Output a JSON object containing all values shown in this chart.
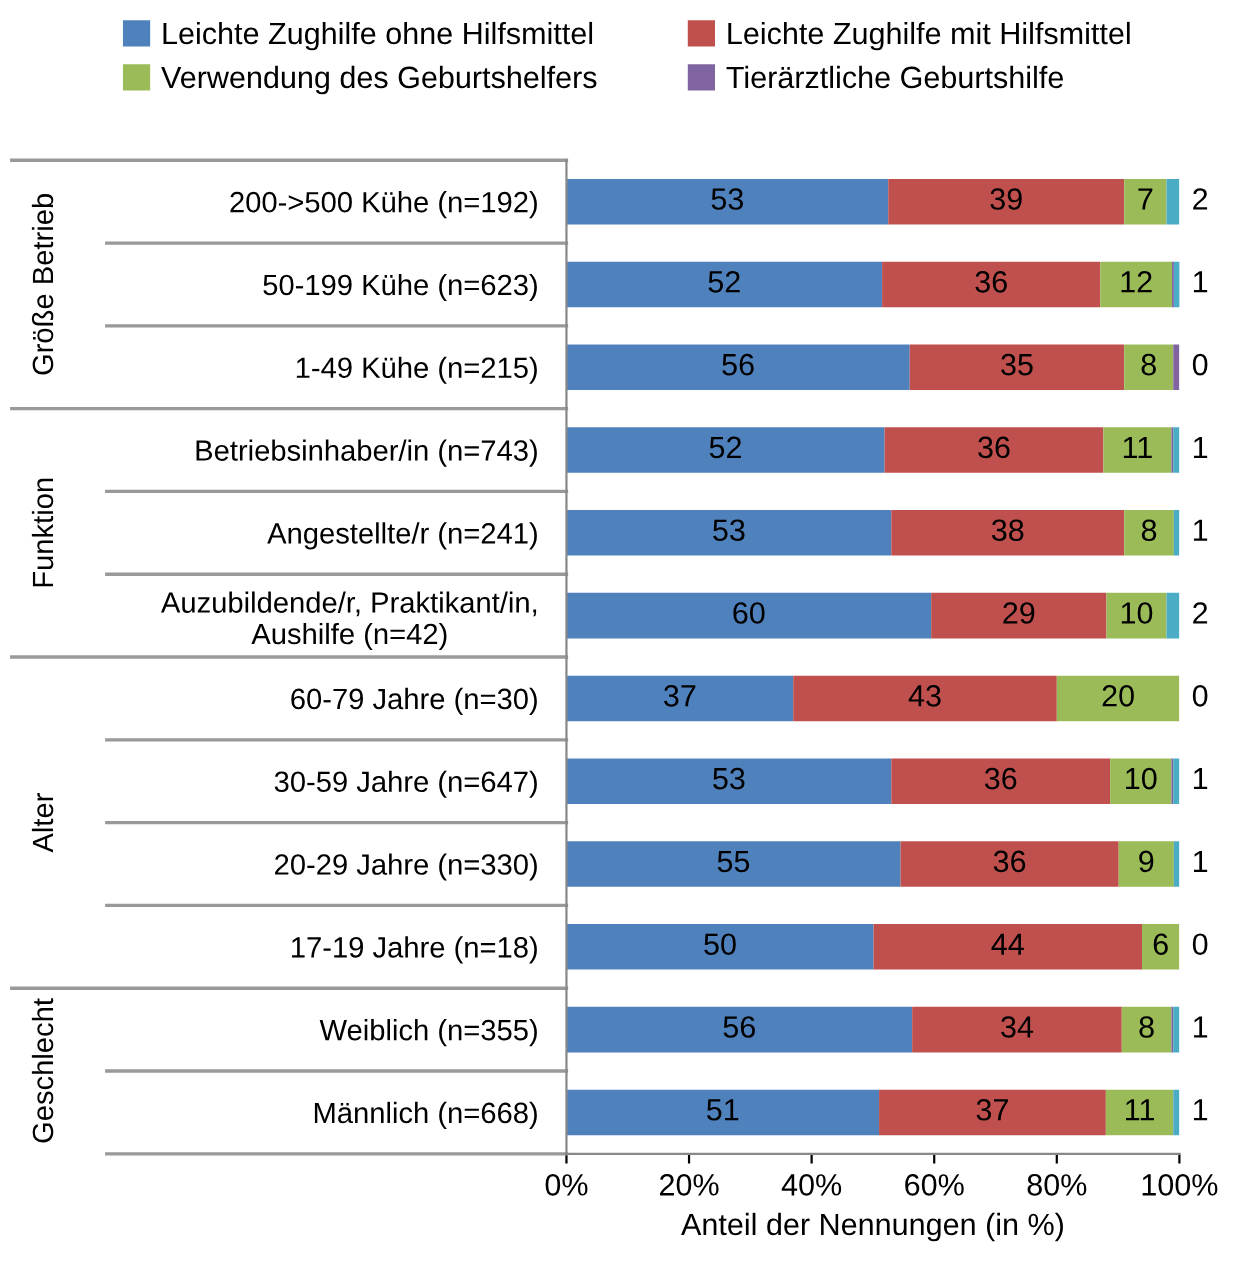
{
  "chart_data": {
    "type": "bar",
    "orientation": "horizontal",
    "stacked": true,
    "categories": [
      "200->500 Kühe (n=192)",
      "50-199 Kühe (n=623)",
      "1-49 Kühe (n=215)",
      "Betriebsinhaber/in (n=743)",
      "Angestellte/r (n=241)",
      "Auzubildende/r, Praktikant/in,\nAushilfe (n=42)",
      "60-79 Jahre (n=30)",
      "30-59 Jahre (n=647)",
      "20-29 Jahre (n=330)",
      "17-19 Jahre (n=18)",
      "Weiblich (n=355)",
      "Männlich (n=668)"
    ],
    "series": [
      {
        "name": "Leichte Zughilfe ohne Hilfsmittel",
        "color": "#4f81bd",
        "values": [
          52.5,
          51.5,
          56.0,
          51.9,
          53.0,
          59.5,
          37.0,
          53.0,
          54.5,
          50.1,
          56.4,
          51.0
        ],
        "value_labels": [
          "53",
          "52",
          "56",
          "52",
          "53",
          "60",
          "37",
          "53",
          "55",
          "50",
          "56",
          "51"
        ]
      },
      {
        "name": "Leichte Zughilfe mit Hilfsmittel",
        "color": "#c0504d",
        "values": [
          38.5,
          35.6,
          35.0,
          35.7,
          38.0,
          28.6,
          43.0,
          35.7,
          35.6,
          43.8,
          34.2,
          37.0
        ],
        "value_labels": [
          "39",
          "36",
          "35",
          "36",
          "38",
          "29",
          "43",
          "36",
          "36",
          "44",
          "34",
          "37"
        ]
      },
      {
        "name": "Verwendung des Geburtshelfers",
        "color": "#9bbb59",
        "values": [
          6.9,
          11.7,
          8.0,
          11.1,
          8.1,
          9.8,
          20.0,
          10.0,
          9.0,
          6.1,
          8.1,
          11.0
        ],
        "value_labels": [
          "7",
          "12",
          "8",
          "11",
          "8",
          "10",
          "20",
          "10",
          "9",
          "6",
          "8",
          "11"
        ]
      },
      {
        "name": "Tierärztliche Geburtshilfe",
        "color": "#8064a2",
        "values": [
          0,
          0.3,
          1.0,
          0.3,
          0,
          0,
          0,
          0.3,
          0,
          0,
          0.3,
          0
        ]
      },
      {
        "color": "#4bacc6",
        "values": [
          2.1,
          1.0,
          0,
          1.0,
          0.9,
          2.1,
          0,
          1.0,
          0.9,
          0,
          1.0,
          1.0
        ],
        "value_labels": [
          "2",
          "1",
          "0",
          "1",
          "1",
          "2",
          "0",
          "1",
          "1",
          "0",
          "1",
          "1"
        ]
      }
    ],
    "xlim": [
      0,
      100
    ],
    "xticks": [
      {
        "value": 0,
        "label": "0%"
      },
      {
        "value": 20,
        "label": "20%"
      },
      {
        "value": 40,
        "label": "40%"
      },
      {
        "value": 60,
        "label": "60%"
      },
      {
        "value": 80,
        "label": "80%"
      },
      {
        "value": 100,
        "label": "100%"
      }
    ],
    "xlabel": "Anteil der Nennungen (in %)",
    "annotations": [
      "Größe Betrieb",
      "Funktion",
      "Alter",
      "Geschlecht"
    ],
    "legend": "top",
    "grid": false
  }
}
